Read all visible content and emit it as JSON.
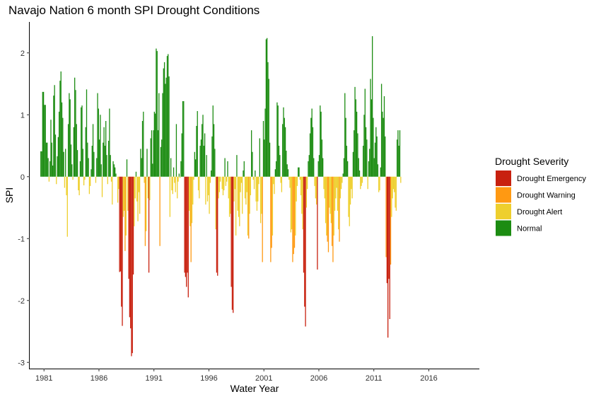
{
  "chart_data": {
    "type": "bar",
    "title": "Navajo Nation 6 month SPI Drought Conditions",
    "xlabel": "Water Year",
    "ylabel": "SPI",
    "xlim": [
      1979.7,
      2020.6
    ],
    "ylim": [
      -3.1,
      2.5
    ],
    "x_ticks": [
      1981,
      1986,
      1991,
      1996,
      2001,
      2006,
      2011,
      2016
    ],
    "x_tick_labels": [
      "1981",
      "1986",
      "1991",
      "1996",
      "2001",
      "2006",
      "2011",
      "2016"
    ],
    "y_ticks": [
      2,
      1,
      0,
      -1,
      -2,
      -3
    ],
    "y_tick_labels": [
      "2",
      "1",
      "0",
      "-1",
      "-2",
      "-3"
    ],
    "grid": false,
    "legend": {
      "title": "Drought Severity",
      "position": "right",
      "entries": [
        {
          "label": "Drought Emergency",
          "color": "#c8210f"
        },
        {
          "label": "Drought Warning",
          "color": "#ff9912"
        },
        {
          "label": "Drought Alert",
          "color": "#eecf2d"
        },
        {
          "label": "Normal",
          "color": "#1c8c12"
        }
      ]
    },
    "classification": "Normal if SPI >= 0; Drought Alert if -1 < SPI < 0 (approx.); Drought Warning if -1.5 < SPI <= -1; Drought Emergency if SPI <= -1.5",
    "bar_width_years": 0.0833,
    "series": [
      {
        "name": "SPI",
        "x_start": 1980.67,
        "x_step": 0.0833,
        "values": [
          0.41,
          0.41,
          1.37,
          1.37,
          1.16,
          1.16,
          0.55,
          0.55,
          0.3,
          -0.08,
          0.25,
          0.92,
          0.55,
          0.18,
          1.31,
          1.48,
          0.68,
          -0.12,
          0.33,
          0.64,
          1.05,
          1.55,
          1.7,
          1.2,
          0.95,
          0.4,
          -0.18,
          0.45,
          -0.3,
          -0.97,
          0.85,
          1.35,
          1.25,
          0.52,
          0.2,
          -0.05,
          0.8,
          1.6,
          1.4,
          0.85,
          0.43,
          -0.22,
          -0.3,
          0.25,
          1.12,
          1.15,
          0.45,
          -0.14,
          -0.05,
          0.8,
          1.41,
          0.55,
          0.3,
          -0.28,
          -0.15,
          0.12,
          0.5,
          0.85,
          0.4,
          0.0,
          -0.1,
          0.3,
          1.35,
          1.1,
          0.6,
          1.0,
          0.2,
          -0.33,
          0.55,
          0.8,
          0.5,
          0.9,
          0.35,
          -0.12,
          0.58,
          1.1,
          0.35,
          -0.08,
          -0.45,
          0.25,
          0.2,
          0.15,
          0.05,
          0.0,
          -0.42,
          -0.2,
          -1.54,
          -1.53,
          -2.1,
          -2.41,
          -0.65,
          -0.55,
          -1.2,
          -0.95,
          0.28,
          -0.55,
          -1.65,
          -2.27,
          -2.45,
          -2.9,
          -2.85,
          -1.58,
          -0.8,
          -0.35,
          0.08,
          -0.4,
          -0.72,
          -0.25,
          -0.6,
          0.45,
          0.3,
          0.9,
          1.05,
          -0.1,
          -1.12,
          -0.88,
          0.45,
          -0.35,
          -1.55,
          -0.38,
          0.62,
          0.75,
          0.21,
          0.75,
          1.05,
          1.02,
          2.07,
          2.03,
          0.75,
          1.35,
          -1.12,
          0.48,
          0.6,
          1.35,
          1.75,
          1.85,
          1.5,
          1.6,
          1.95,
          1.98,
          1.62,
          -0.65,
          0.3,
          -0.22,
          -0.28,
          0.15,
          -0.1,
          -0.25,
          0.85,
          -0.35,
          -0.08,
          0.05,
          -0.02,
          0.25,
          0.7,
          1.22,
          1.22,
          -1.55,
          -1.62,
          -1.78,
          -1.55,
          -1.95,
          -0.55,
          -0.8,
          -1.38,
          -0.75,
          -0.45,
          -0.05,
          0.4,
          0.28,
          0.82,
          1.06,
          -0.22,
          -0.35,
          0.5,
          0.6,
          0.85,
          1.0,
          0.5,
          0.7,
          -0.45,
          0.35,
          -0.4,
          -0.3,
          -0.6,
          -0.1,
          0.1,
          0.65,
          1.15,
          0.85,
          0.45,
          -0.85,
          -1.55,
          -1.6,
          -0.35,
          -0.25,
          -0.08,
          0.0,
          -0.2,
          -0.3,
          -0.22,
          0.3,
          -0.15,
          -0.08,
          0.25,
          -0.35,
          -0.65,
          -0.6,
          -1.78,
          -2.15,
          -2.2,
          -0.4,
          -0.2,
          -0.95,
          0.35,
          -0.55,
          -0.65,
          -0.8,
          -0.25,
          -0.1,
          -0.6,
          0.1,
          0.25,
          -0.35,
          -0.45,
          -0.25,
          -0.95,
          -1.0,
          -0.6,
          -0.3,
          0.75,
          0.4,
          -0.05,
          -0.2,
          0.1,
          -0.4,
          -0.55,
          -0.4,
          -0.12,
          0.62,
          -0.75,
          -0.6,
          -1.38,
          0.9,
          0.6,
          1.1,
          2.22,
          2.24,
          1.85,
          1.58,
          0.55,
          -1.38,
          -1.15,
          -0.95,
          -0.12,
          -0.28,
          0.12,
          0.25,
          1.2,
          1.15,
          0.5,
          0.35,
          -0.1,
          -0.25,
          0.85,
          1.12,
          0.95,
          0.8,
          0.42,
          0.2,
          0.12,
          -0.05,
          -0.18,
          -0.9,
          -0.85,
          -1.38,
          -1.25,
          -1.15,
          -0.95,
          -0.4,
          -0.15,
          0.15,
          0.15,
          -0.05,
          -0.3,
          -0.6,
          -0.85,
          -1.55,
          -2.1,
          -2.42,
          -0.5,
          -0.2,
          0.25,
          0.35,
          0.7,
          0.95,
          1.1,
          0.8,
          0.3,
          -0.15,
          -0.35,
          -0.45,
          -1.5,
          0.25,
          0.35,
          1.15,
          1.05,
          0.6,
          0.3,
          -0.2,
          -0.35,
          -0.75,
          -0.95,
          -1.05,
          -1.22,
          -0.5,
          -0.6,
          -0.75,
          -1.12,
          -1.38,
          -0.95,
          -0.55,
          -0.35,
          -0.18,
          -0.55,
          -0.85,
          -1.05,
          -0.35,
          -0.2,
          -0.1,
          0.05,
          0.3,
          1.35,
          0.95,
          0.5,
          0.25,
          -0.65,
          -0.8,
          -0.45,
          -0.2,
          -0.35,
          0.4,
          0.75,
          1.45,
          1.25,
          1.05,
          0.7,
          0.3,
          0.1,
          -0.2,
          -0.15,
          -0.1,
          0.5,
          1.0,
          1.42,
          0.8,
          0.6,
          -0.2,
          0.25,
          0.45,
          1.58,
          1.25,
          2.27,
          0.95,
          0.3,
          0.55,
          0.8,
          0.65,
          0.2,
          -0.25,
          -0.22,
          0.15,
          1.5,
          1.05,
          0.95,
          1.3,
          0.65,
          -1.3,
          -1.72,
          -2.6,
          -1.65,
          -2.3,
          -1.42,
          -0.65,
          -0.35,
          -0.2,
          -0.25,
          -0.5,
          -0.55,
          0.6,
          0.75,
          0.5,
          0.75,
          -0.1
        ]
      }
    ]
  }
}
